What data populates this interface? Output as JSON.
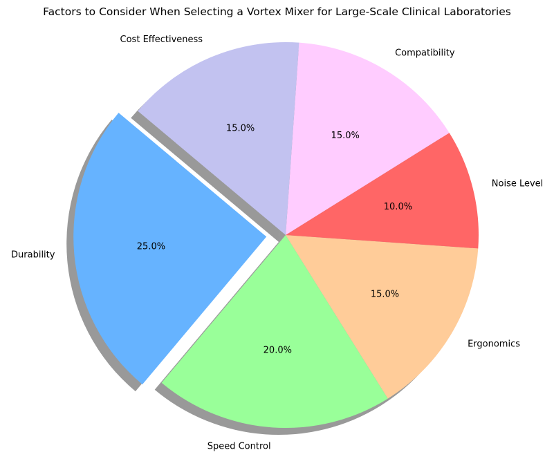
{
  "chart_data": {
    "type": "pie",
    "title": "Factors to Consider When Selecting a Vortex Mixer for Large-Scale Clinical Laboratories",
    "categories": [
      "Durability",
      "Speed Control",
      "Ergonomics",
      "Noise Level",
      "Compatibility",
      "Cost Effectiveness"
    ],
    "values": [
      25,
      20,
      15,
      10,
      15,
      15
    ],
    "value_labels": [
      "25.0%",
      "20.0%",
      "15.0%",
      "10.0%",
      "15.0%",
      "15.0%"
    ],
    "colors": [
      "#66b3ff",
      "#99ff99",
      "#ffcc99",
      "#ff6666",
      "#ffccff",
      "#c2c2f0"
    ],
    "explode": [
      0.1,
      0,
      0,
      0,
      0,
      0
    ],
    "start_angle_deg": 140,
    "direction": "counterclockwise",
    "shadow": true
  }
}
